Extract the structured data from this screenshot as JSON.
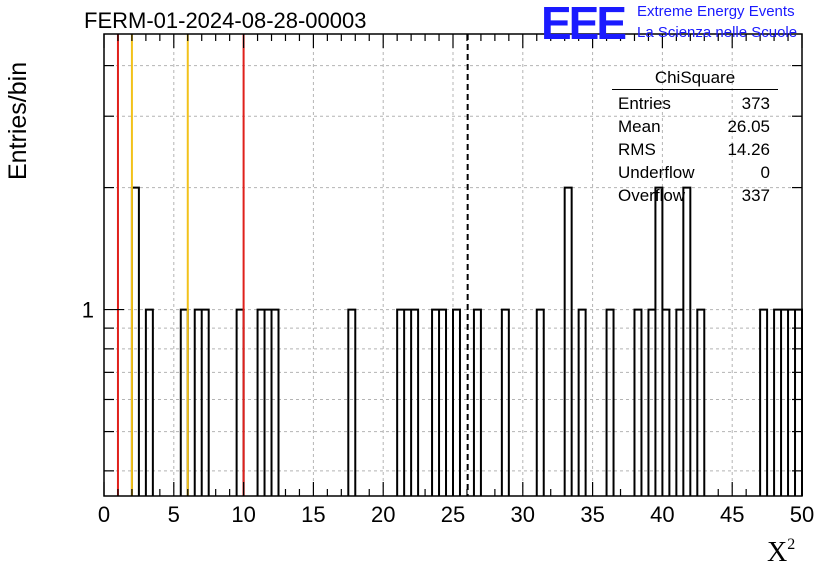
{
  "header": {
    "title": "FERM-01-2024-08-28-00003",
    "logo_mark": "EEE",
    "logo_line1": "Extreme Energy Events",
    "logo_line2": "La Scienza nelle Scuole"
  },
  "stats_box": {
    "title": "ChiSquare",
    "rows": [
      {
        "label": "Entries",
        "value": "373"
      },
      {
        "label": "Mean",
        "value": "26.05"
      },
      {
        "label": "RMS",
        "value": "14.26"
      },
      {
        "label": "Underflow",
        "value": "0"
      },
      {
        "label": "Overflow",
        "value": "337"
      }
    ]
  },
  "chart_data": {
    "type": "histogram",
    "title": "FERM-01-2024-08-28-00003",
    "xlabel": "X",
    "xlabel_sup": "2",
    "ylabel": "Entries/bin",
    "xlim": [
      0,
      50
    ],
    "ylog": true,
    "ylim_log10": [
      -0.46,
      0.68
    ],
    "x_ticks": [
      0,
      5,
      10,
      15,
      20,
      25,
      30,
      35,
      40,
      45,
      50
    ],
    "y_ticks": [
      1
    ],
    "grid": true,
    "bin_width": 0.5,
    "bins": [
      {
        "x": 2.0,
        "count": 2
      },
      {
        "x": 3.0,
        "count": 1
      },
      {
        "x": 5.5,
        "count": 1
      },
      {
        "x": 6.5,
        "count": 1
      },
      {
        "x": 7.0,
        "count": 1
      },
      {
        "x": 9.5,
        "count": 1
      },
      {
        "x": 11.0,
        "count": 1
      },
      {
        "x": 11.5,
        "count": 1
      },
      {
        "x": 12.0,
        "count": 1
      },
      {
        "x": 17.5,
        "count": 1
      },
      {
        "x": 21.0,
        "count": 1
      },
      {
        "x": 21.5,
        "count": 1
      },
      {
        "x": 22.0,
        "count": 1
      },
      {
        "x": 23.5,
        "count": 1
      },
      {
        "x": 24.0,
        "count": 1
      },
      {
        "x": 25.0,
        "count": 1
      },
      {
        "x": 26.5,
        "count": 1
      },
      {
        "x": 28.5,
        "count": 1
      },
      {
        "x": 31.0,
        "count": 1
      },
      {
        "x": 33.0,
        "count": 2
      },
      {
        "x": 34.0,
        "count": 1
      },
      {
        "x": 36.0,
        "count": 1
      },
      {
        "x": 38.0,
        "count": 1
      },
      {
        "x": 39.0,
        "count": 1
      },
      {
        "x": 39.5,
        "count": 2
      },
      {
        "x": 40.0,
        "count": 1
      },
      {
        "x": 41.0,
        "count": 1
      },
      {
        "x": 41.5,
        "count": 2
      },
      {
        "x": 42.5,
        "count": 1
      },
      {
        "x": 47.0,
        "count": 1
      },
      {
        "x": 48.0,
        "count": 1
      },
      {
        "x": 48.5,
        "count": 1
      },
      {
        "x": 49.0,
        "count": 1
      },
      {
        "x": 49.5,
        "count": 1
      }
    ],
    "reference_lines": [
      {
        "x": 1,
        "color": "#e0201b",
        "style": "solid"
      },
      {
        "x": 2,
        "color": "#f2c21a",
        "style": "solid"
      },
      {
        "x": 6,
        "color": "#f2c21a",
        "style": "solid"
      },
      {
        "x": 10,
        "color": "#e0201b",
        "style": "solid"
      },
      {
        "x": 26.05,
        "color": "#000000",
        "style": "dashed"
      }
    ]
  }
}
